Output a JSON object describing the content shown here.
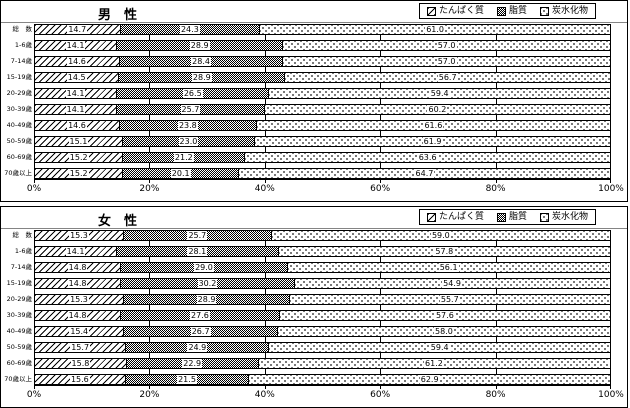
{
  "colors": {
    "foreground": "#000000",
    "background": "#ffffff",
    "header_rule": "#848484"
  },
  "chart_data": [
    {
      "type": "bar",
      "stacked": true,
      "orientation": "horizontal",
      "title": "男　性",
      "categories": [
        "総　数",
        "1-6歳",
        "7-14歳",
        "15-19歳",
        "20-29歳",
        "30-39歳",
        "40-49歳",
        "50-59歳",
        "60-69歳",
        "70歳以上"
      ],
      "series": [
        {
          "name": "たんぱく質",
          "pattern": "protein",
          "values": [
            14.7,
            14.1,
            14.6,
            14.5,
            14.1,
            14.1,
            14.6,
            15.1,
            15.2,
            15.2
          ]
        },
        {
          "name": "脂質",
          "pattern": "fat",
          "values": [
            24.3,
            28.9,
            28.4,
            28.9,
            26.5,
            25.7,
            23.8,
            23.0,
            21.2,
            20.1
          ]
        },
        {
          "name": "炭水化物",
          "pattern": "carb",
          "values": [
            61.0,
            57.0,
            57.0,
            56.7,
            59.4,
            60.2,
            61.6,
            61.9,
            63.6,
            64.7
          ]
        }
      ],
      "xlim": [
        0,
        100
      ],
      "x_ticks": [
        "0%",
        "20%",
        "40%",
        "60%",
        "80%",
        "100%"
      ],
      "grid": true,
      "legend_position": "top-right",
      "data_labels": "one-decimal, centered in segment, white box"
    },
    {
      "type": "bar",
      "stacked": true,
      "orientation": "horizontal",
      "title": "女　性",
      "categories": [
        "総　数",
        "1-6歳",
        "7-14歳",
        "15-19歳",
        "20-29歳",
        "30-39歳",
        "40-49歳",
        "50-59歳",
        "60-69歳",
        "70歳以上"
      ],
      "series": [
        {
          "name": "たんぱく質",
          "pattern": "protein",
          "values": [
            15.3,
            14.1,
            14.8,
            14.8,
            15.3,
            14.8,
            15.4,
            15.7,
            15.8,
            15.6
          ]
        },
        {
          "name": "脂質",
          "pattern": "fat",
          "values": [
            25.7,
            28.1,
            29.0,
            30.2,
            28.9,
            27.6,
            26.7,
            24.9,
            22.9,
            21.5
          ]
        },
        {
          "name": "炭水化物",
          "pattern": "carb",
          "values": [
            59.0,
            57.8,
            56.1,
            54.9,
            55.7,
            57.6,
            58.0,
            59.4,
            61.2,
            62.9
          ]
        }
      ],
      "xlim": [
        0,
        100
      ],
      "x_ticks": [
        "0%",
        "20%",
        "40%",
        "60%",
        "80%",
        "100%"
      ],
      "grid": true,
      "legend_position": "top-right",
      "data_labels": "one-decimal, centered in segment, white box"
    }
  ]
}
